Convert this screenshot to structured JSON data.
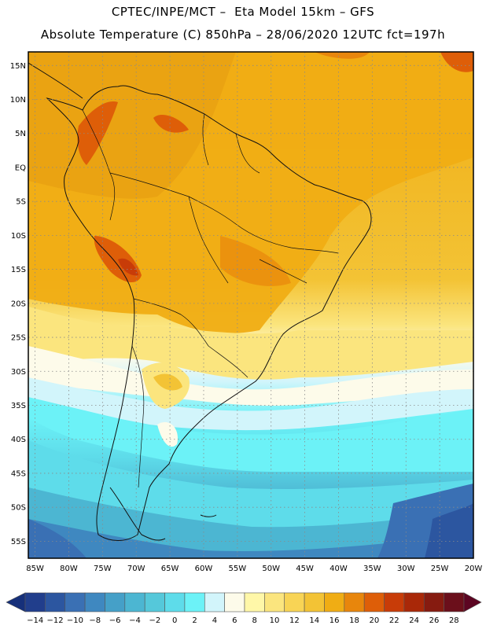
{
  "header": {
    "title_line1": "CPTEC/INPE/MCT –  Eta Model 15km – GFS",
    "title_line2": "Absolute Temperature (C) 850hPa – 28/06/2020 12UTC fct=197h"
  },
  "map": {
    "region": "South America",
    "lat_labels": [
      "15N",
      "10N",
      "5N",
      "EQ",
      "5S",
      "10S",
      "15S",
      "20S",
      "25S",
      "30S",
      "35S",
      "40S",
      "45S",
      "50S",
      "55S"
    ],
    "lon_labels": [
      "85W",
      "80W",
      "75W",
      "70W",
      "65W",
      "60W",
      "55W",
      "50W",
      "45W",
      "40W",
      "35W",
      "30W",
      "25W",
      "20W"
    ]
  },
  "colorbar": {
    "labels": [
      "-14",
      "-12",
      "-10",
      "-8",
      "-6",
      "-4",
      "-2",
      "0",
      "2",
      "4",
      "6",
      "8",
      "10",
      "12",
      "14",
      "16",
      "18",
      "20",
      "22",
      "24",
      "26",
      "28"
    ],
    "colors": [
      "#213e8c",
      "#2c56a0",
      "#3a70b4",
      "#3f88c0",
      "#45a0c8",
      "#4cb6d2",
      "#55c8da",
      "#5edcea",
      "#6cf2f7",
      "#d2f5fb",
      "#fdfbea",
      "#fff7a8",
      "#fbe57e",
      "#f8d455",
      "#f3c335",
      "#f0ad14",
      "#e8860c",
      "#de5e08",
      "#c83c08",
      "#a92808",
      "#861b10",
      "#6b0f1b"
    ],
    "under_color": "#16307a",
    "over_color": "#5c0522"
  }
}
